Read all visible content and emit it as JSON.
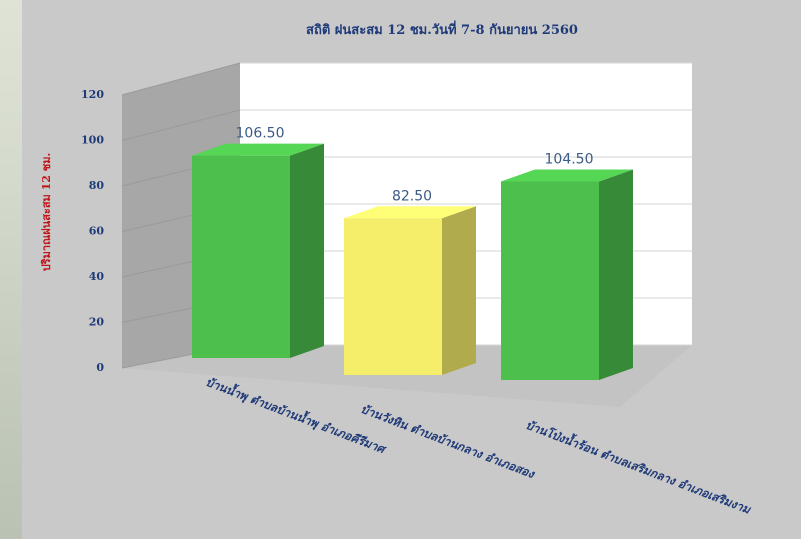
{
  "chart_data": {
    "type": "bar",
    "title": "สถิติ ฝนสะสม 12 ชม.วันที่ 7-8 กันยายน 2560",
    "ylabel": "ปริมาณฝนสะสม 12 ชม.",
    "xlabel": "",
    "ylim": [
      0,
      120
    ],
    "yticks": [
      0,
      20,
      40,
      60,
      80,
      100,
      120
    ],
    "grid": true,
    "categories": [
      "บ้านน้ำพุ ตำบลบ้านน้ำพุ อำเภอคีรีมาศ",
      "บ้านวังหิน ตำบลบ้านกลาง อำเภอสอง",
      "บ้านโป่งน้ำร้อน ตำบลเสริมกลาง อำเภอเสริมงาม"
    ],
    "values": [
      106.5,
      82.5,
      104.5
    ],
    "value_labels": [
      "106.50",
      "82.50",
      "104.50"
    ],
    "bar_colors": [
      "#4cbf4c",
      "#f5ee6a",
      "#4cbf4c"
    ],
    "colors": {
      "title": "#1f3a78",
      "ylabel": "#c0161b",
      "ticks": "#1f3a78",
      "category_labels": "#1f3a78",
      "value_labels": "#3b5b85"
    }
  }
}
